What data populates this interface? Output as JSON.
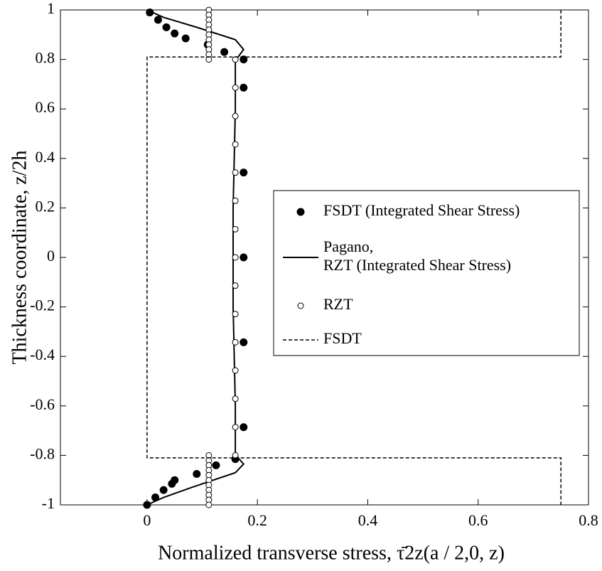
{
  "chart_data": {
    "type": "line",
    "xlabel": "Normalized transverse stress, τ̄2z(a / 2,0, z)",
    "ylabel": "Thickness coordinate, z/2h",
    "xlim": [
      -0.157,
      0.8
    ],
    "xticks": [
      0,
      0.2,
      0.4,
      0.6,
      0.8
    ],
    "ylim": [
      -1,
      1
    ],
    "yticks": [
      -1,
      -0.8,
      -0.6,
      -0.4,
      -0.2,
      0,
      0.2,
      0.4,
      0.6,
      0.8,
      1
    ],
    "legend": "right",
    "series": [
      {
        "name": "FSDT (Integrated Shear Stress)",
        "style": "filled-markers",
        "color": "#000",
        "x": [
          0.005,
          0.02,
          0.035,
          0.05,
          0.07,
          0.11,
          0.14,
          0.175,
          0.175,
          0.175,
          0.175,
          0.175,
          0.175,
          0.16,
          0.125,
          0.09,
          0.05,
          0.045,
          0.03,
          0.015,
          0.0
        ],
        "values": [
          0.99,
          0.96,
          0.93,
          0.905,
          0.885,
          0.86,
          0.83,
          0.8,
          0.686,
          0.343,
          0,
          -0.343,
          -0.686,
          -0.815,
          -0.84,
          -0.875,
          -0.9,
          -0.915,
          -0.94,
          -0.97,
          -1.0
        ]
      },
      {
        "name": "Pagano,\nRZT (Integrated Shear Stress)",
        "style": "solid",
        "color": "#000",
        "x": [
          0,
          0.03,
          0.09,
          0.16,
          0.175,
          0.165,
          0.16,
          0.16,
          0.158,
          0.156,
          0.156,
          0.156,
          0.158,
          0.16,
          0.16,
          0.165,
          0.175,
          0.16,
          0.08,
          0.03,
          0
        ],
        "values": [
          1,
          0.97,
          0.93,
          0.88,
          0.84,
          0.81,
          0.8,
          0.6,
          0.4,
          0.2,
          0,
          -0.2,
          -0.4,
          -0.6,
          -0.8,
          -0.81,
          -0.835,
          -0.87,
          -0.93,
          -0.97,
          -1
        ]
      },
      {
        "name": "RZT",
        "style": "open-markers",
        "color": "#000",
        "x": [
          0.112,
          0.112,
          0.112,
          0.112,
          0.112,
          0.112,
          0.112,
          0.112,
          0.112,
          0.112,
          0.112,
          0.16,
          0.16,
          0.16,
          0.16,
          0.16,
          0.16,
          0.16,
          0.16,
          0.16,
          0.16,
          0.16,
          0.16,
          0.16,
          0.16,
          0.16,
          0.112,
          0.112,
          0.112,
          0.112,
          0.112,
          0.112,
          0.112,
          0.112,
          0.112,
          0.112,
          0.112
        ],
        "values": [
          1,
          0.98,
          0.96,
          0.94,
          0.92,
          0.9,
          0.88,
          0.86,
          0.84,
          0.82,
          0.8,
          0.8,
          0.686,
          0.571,
          0.457,
          0.343,
          0.229,
          0.114,
          0,
          -0.114,
          -0.229,
          -0.343,
          -0.457,
          -0.571,
          -0.686,
          -0.8,
          -0.8,
          -0.82,
          -0.84,
          -0.86,
          -0.88,
          -0.9,
          -0.92,
          -0.94,
          -0.96,
          -0.98,
          -1
        ]
      },
      {
        "name": "FSDT",
        "style": "dashed",
        "color": "#000",
        "x": [
          0.75,
          0.75,
          0,
          0,
          0.75,
          0.75
        ],
        "values": [
          1,
          0.81,
          0.81,
          -0.81,
          -0.81,
          -1
        ]
      }
    ]
  }
}
